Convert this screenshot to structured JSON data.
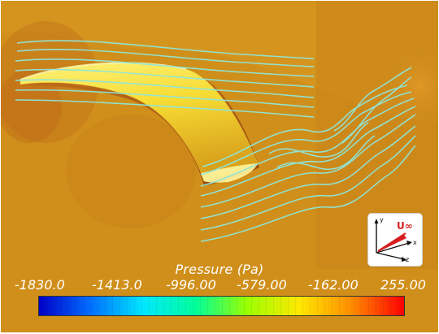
{
  "legend": {
    "title": "Pressure (Pa)",
    "ticks": [
      "-1830.0",
      "-1413.0",
      "-996.00",
      "-579.00",
      "-162.00",
      "255.00"
    ],
    "colormap": [
      "#0000c8",
      "#0070ff",
      "#00e8ff",
      "#00ff9a",
      "#9cff00",
      "#ffe800",
      "#ff8c00",
      "#ff0000"
    ]
  },
  "axes_indicator": {
    "y_label": "y",
    "x_label": "x",
    "z_label": "z",
    "velocity_label": "U∞"
  },
  "colors": {
    "background": "#d08f1a",
    "streamline": "#8fe6d8",
    "blade": "#f5df3a"
  }
}
